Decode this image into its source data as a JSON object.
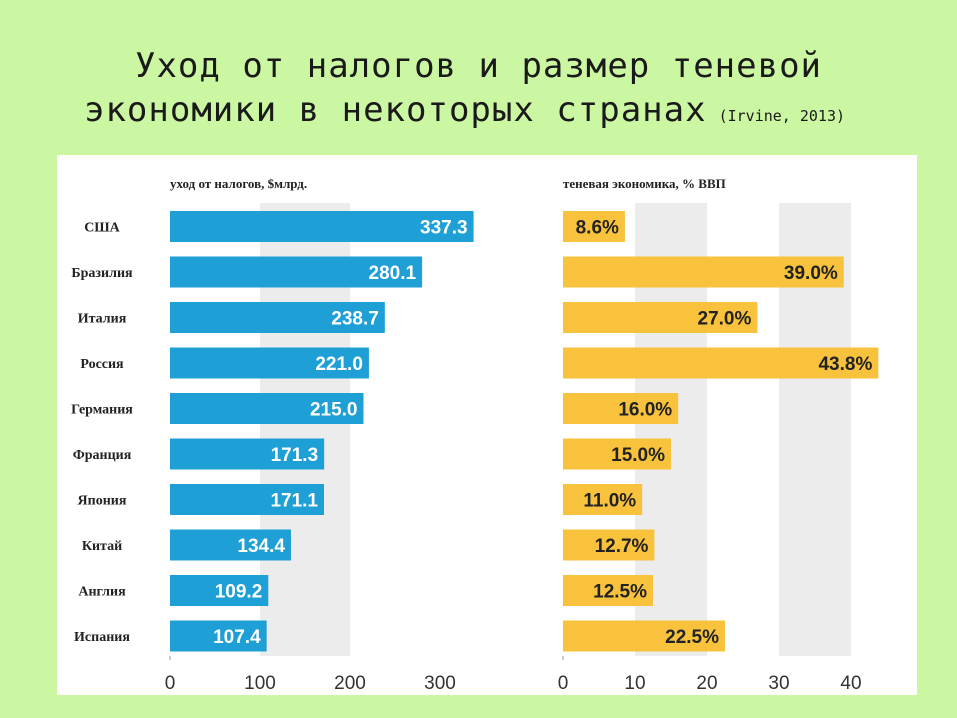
{
  "title": {
    "line1": "Уход от налогов и размер теневой",
    "line2": "экономики в некоторых странах",
    "citation": "(Irvine, 2013)"
  },
  "colors": {
    "left_bar": "#1e9fd6",
    "right_bar": "#f8c23c",
    "band": "#ececec",
    "panel": "#ffffff",
    "background": "#ccf7a2"
  },
  "chart_data": [
    {
      "type": "bar",
      "orientation": "horizontal",
      "title": "уход от налогов, $млрд.",
      "categories": [
        "США",
        "Бразилия",
        "Италия",
        "Россия",
        "Германия",
        "Франция",
        "Япония",
        "Китай",
        "Англия",
        "Испания"
      ],
      "values": [
        337.3,
        280.1,
        238.7,
        221.0,
        215.0,
        171.3,
        171.1,
        134.4,
        109.2,
        107.4
      ],
      "value_labels": [
        "337.3",
        "280.1",
        "238.7",
        "221.0",
        "215.0",
        "171.3",
        "171.1",
        "134.4",
        "109.2",
        "107.4"
      ],
      "xlim": [
        0,
        300
      ],
      "ticks": [
        0,
        100,
        200,
        300
      ],
      "tick_labels": [
        "0",
        "100",
        "200",
        "300"
      ]
    },
    {
      "type": "bar",
      "orientation": "horizontal",
      "title": "теневая экономика, % ВВП",
      "categories": [
        "США",
        "Бразилия",
        "Италия",
        "Россия",
        "Германия",
        "Франция",
        "Япония",
        "Китай",
        "Англия",
        "Испания"
      ],
      "values": [
        8.6,
        39.0,
        27.0,
        43.8,
        16.0,
        15.0,
        11.0,
        12.7,
        12.5,
        22.5
      ],
      "value_labels": [
        "8.6%",
        "39.0%",
        "27.0%",
        "43.8%",
        "16.0%",
        "15.0%",
        "11.0%",
        "12.7%",
        "12.5%",
        "22.5%"
      ],
      "xlim": [
        0,
        40
      ],
      "ticks": [
        0,
        10,
        20,
        30,
        40
      ],
      "tick_labels": [
        "0",
        "10",
        "20",
        "30",
        "40"
      ]
    }
  ]
}
